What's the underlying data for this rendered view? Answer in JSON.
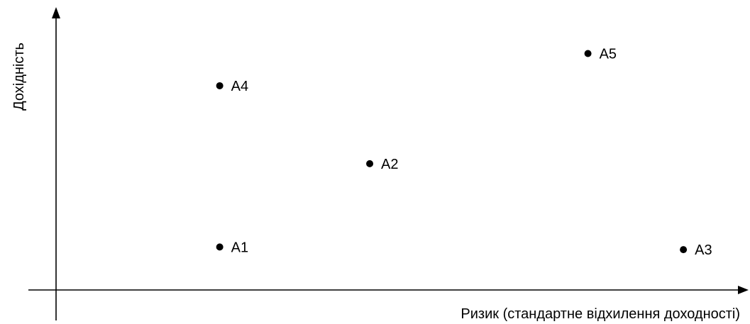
{
  "chart_data": {
    "type": "scatter",
    "title": "",
    "xlabel": "Ризик (стандартне відхилення доходності)",
    "ylabel": "Дохідність",
    "xlim": [
      0,
      10
    ],
    "ylim": [
      0,
      10
    ],
    "grid": false,
    "legend": "none",
    "ticks": false,
    "points": [
      {
        "label": "A1",
        "x": 2.4,
        "y": 1.6
      },
      {
        "label": "A2",
        "x": 4.6,
        "y": 4.7
      },
      {
        "label": "A3",
        "x": 9.2,
        "y": 1.5
      },
      {
        "label": "A4",
        "x": 2.4,
        "y": 7.6
      },
      {
        "label": "A5",
        "x": 7.8,
        "y": 8.8
      }
    ]
  },
  "colors": {
    "marker": "#000000",
    "axis": "#000000",
    "background": "#ffffff"
  }
}
